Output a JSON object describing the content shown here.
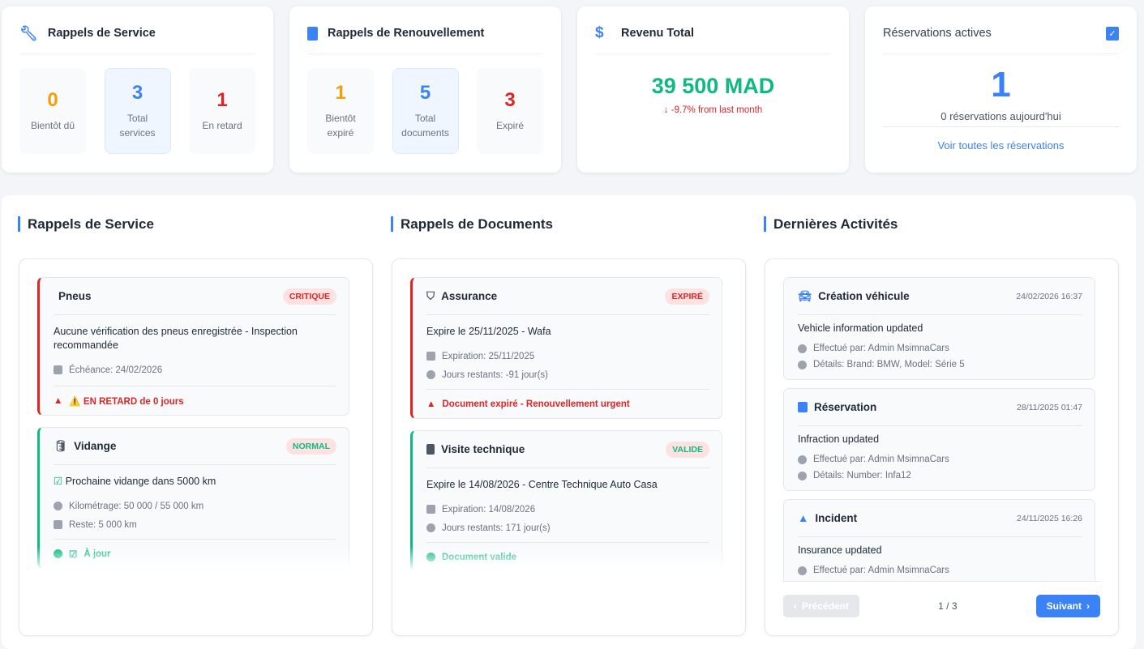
{
  "service_card": {
    "title": "Rappels de Service",
    "stats": [
      {
        "value": "0",
        "label": "Bientôt dû"
      },
      {
        "value": "3",
        "label": "Total services"
      },
      {
        "value": "1",
        "label": "En retard"
      }
    ]
  },
  "renewal_card": {
    "title": "Rappels de Renouvellement",
    "stats": [
      {
        "value": "1",
        "label": "Bientôt expiré"
      },
      {
        "value": "5",
        "label": "Total documents"
      },
      {
        "value": "3",
        "label": "Expiré"
      }
    ]
  },
  "revenue_card": {
    "title": "Revenu Total",
    "amount": "39 500 MAD",
    "change": "-9.7% from last month"
  },
  "reservations_card": {
    "title": "Réservations actives",
    "count": "1",
    "today": "0 réservations aujourd'hui",
    "link": "Voir toutes les réservations"
  },
  "service_reminders": {
    "title": "Rappels de Service",
    "items": [
      {
        "name": "Pneus",
        "badge": "CRITIQUE",
        "description": "Aucune vérification des pneus enregistrée - Inspection recommandée",
        "meta": [
          "Échéance: 24/02/2026"
        ],
        "footer": "⚠️ EN RETARD de 0 jours"
      },
      {
        "name": "Vidange",
        "badge": "NORMAL",
        "description": "Prochaine vidange dans 5000 km",
        "meta": [
          "Kilométrage: 50 000 / 55 000 km",
          "Reste: 5 000 km"
        ],
        "footer": "À jour"
      }
    ]
  },
  "document_reminders": {
    "title": "Rappels de Documents",
    "items": [
      {
        "name": "Assurance",
        "badge": "EXPIRÉ",
        "description": "Expire le 25/11/2025 - Wafa",
        "meta": [
          "Expiration: 25/11/2025",
          "Jours restants: -91 jour(s)"
        ],
        "footer": "Document expiré - Renouvellement urgent"
      },
      {
        "name": "Visite technique",
        "badge": "VALIDE",
        "description": "Expire le 14/08/2026 - Centre Technique Auto Casa",
        "meta": [
          "Expiration: 14/08/2026",
          "Jours restants: 171 jour(s)"
        ],
        "footer": "Document valide"
      }
    ]
  },
  "activities": {
    "title": "Dernières Activités",
    "items": [
      {
        "type": "Création véhicule",
        "date": "24/02/2026 16:37",
        "description": "Vehicle information updated",
        "by": "Effectué par: Admin MsimnaCars",
        "details": "Détails: Brand: BMW, Model: Série 5"
      },
      {
        "type": "Réservation",
        "date": "28/11/2025 01:47",
        "description": "Infraction updated",
        "by": "Effectué par: Admin MsimnaCars",
        "details": "Détails: Number: Infa12"
      },
      {
        "type": "Incident",
        "date": "24/11/2025 16:26",
        "description": "Insurance updated",
        "by": "Effectué par: Admin MsimnaCars"
      }
    ],
    "prev": "Précédent",
    "page": "1 / 3",
    "next": "Suivant"
  },
  "colors": {
    "accent": "#3b82f6",
    "danger": "#dc2626",
    "warning": "#f59e0b",
    "success": "#10b981"
  }
}
